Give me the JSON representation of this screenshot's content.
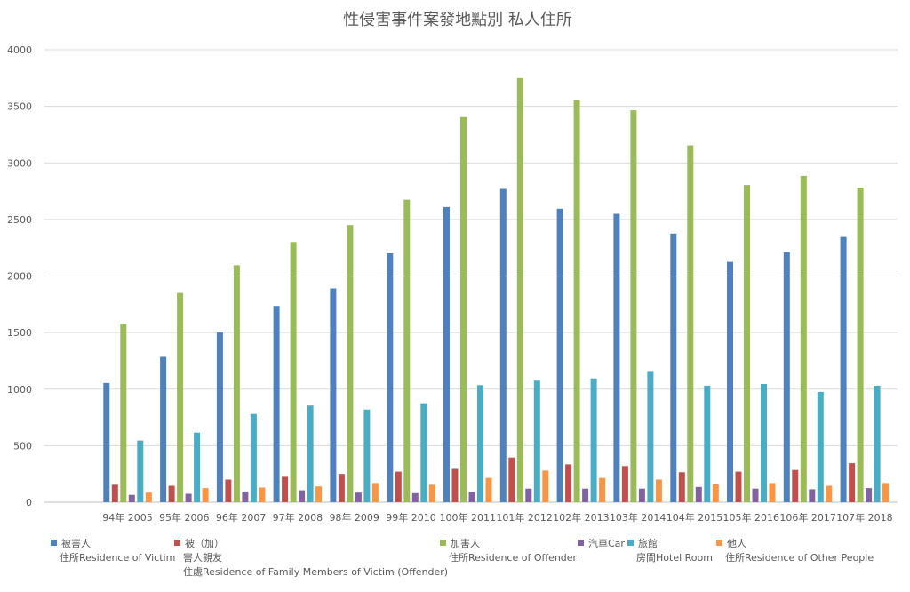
{
  "chart_data": {
    "type": "bar",
    "title": "性侵害事件案發地點別 私人住所",
    "categories": [
      "94年 2005",
      "95年 2006",
      "96年 2007",
      "97年 2008",
      "98年 2009",
      "99年 2010",
      "100年 2011",
      "101年 2012",
      "102年 2013",
      "103年 2014",
      "104年 2015",
      "105年 2016",
      "106年 2017",
      "107年 2018"
    ],
    "ylim": [
      0,
      4000
    ],
    "yticks": [
      0,
      500,
      1000,
      1500,
      2000,
      2500,
      3000,
      3500,
      4000
    ],
    "grid": true,
    "legend_position": "bottom",
    "series": [
      {
        "name": "被害人 住所Residence of Victim",
        "name_lines": [
          "被害人",
          "住所Residence of Victim"
        ],
        "color": "#4f81bd",
        "values": [
          1055,
          1285,
          1500,
          1735,
          1890,
          2200,
          2610,
          2770,
          2595,
          2550,
          2375,
          2125,
          2210,
          2345
        ]
      },
      {
        "name": "被（加）害人親友 住處Residence of Family Members of Victim (Offender)",
        "name_lines": [
          "被（加）",
          "害人親友",
          "住處Residence of Family Members of Victim (Offender)"
        ],
        "color": "#c0504d",
        "values": [
          155,
          145,
          200,
          225,
          250,
          270,
          295,
          395,
          335,
          320,
          265,
          270,
          285,
          345
        ]
      },
      {
        "name": "加害人 住所Residence of Offender",
        "name_lines": [
          "加害人",
          "住所Residence of Offender"
        ],
        "color": "#9bbb59",
        "values": [
          1575,
          1850,
          2095,
          2300,
          2450,
          2675,
          3405,
          3750,
          3555,
          3465,
          3155,
          2805,
          2885,
          2780
        ]
      },
      {
        "name": "汽車Car",
        "name_lines": [
          "汽車Car"
        ],
        "color": "#8064a2",
        "values": [
          65,
          75,
          95,
          105,
          85,
          80,
          90,
          120,
          120,
          120,
          135,
          120,
          115,
          125
        ]
      },
      {
        "name": "旅館 房間Hotel Room",
        "name_lines": [
          "旅館",
          "房間Hotel Room"
        ],
        "color": "#4bacc6",
        "values": [
          545,
          615,
          780,
          855,
          820,
          875,
          1035,
          1075,
          1095,
          1160,
          1030,
          1045,
          975,
          1030
        ]
      },
      {
        "name": "他人 住所Residence of Other People",
        "name_lines": [
          "他人",
          "住所Residence of Other People"
        ],
        "color": "#f79646",
        "values": [
          85,
          125,
          130,
          140,
          170,
          155,
          215,
          280,
          215,
          200,
          160,
          170,
          145,
          170
        ]
      }
    ]
  }
}
